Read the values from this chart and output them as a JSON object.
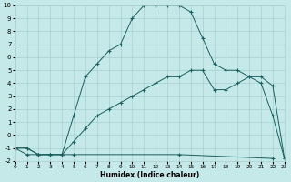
{
  "background_color": "#c5e8e8",
  "grid_color": "#a8d0d0",
  "line_color": "#1a6060",
  "curve1_x": [
    0,
    1,
    2,
    3,
    4,
    5,
    6,
    7,
    8,
    9,
    10,
    11,
    12,
    13,
    14,
    15,
    16,
    17,
    18,
    19,
    20,
    21,
    22,
    23
  ],
  "curve1_y": [
    -1,
    -1,
    -1.5,
    -1.5,
    -1.5,
    1.5,
    4.5,
    5.5,
    6.5,
    7.0,
    9.0,
    10.0,
    10.0,
    10.0,
    10.0,
    9.5,
    7.5,
    5.5,
    5.0,
    5.0,
    4.5,
    4.0,
    1.5,
    -1.8
  ],
  "curve2_x": [
    0,
    1,
    2,
    3,
    4,
    5,
    6,
    7,
    8,
    9,
    10,
    11,
    12,
    13,
    14,
    15,
    16,
    17,
    18,
    19,
    20,
    21,
    22,
    23
  ],
  "curve2_y": [
    -1,
    -1,
    -1.5,
    -1.5,
    -1.5,
    -0.5,
    0.5,
    1.5,
    2.0,
    2.5,
    3.0,
    3.5,
    4.0,
    4.5,
    4.5,
    5.0,
    5.0,
    3.5,
    3.5,
    4.0,
    4.5,
    4.5,
    3.8,
    -1.8
  ],
  "curve3_x": [
    0,
    1,
    2,
    3,
    4,
    5,
    14,
    22
  ],
  "curve3_y": [
    -1,
    -1.5,
    -1.5,
    -1.5,
    -1.5,
    -1.5,
    -1.5,
    -1.8
  ],
  "xlabel": "Humidex (Indice chaleur)",
  "ylim": [
    -2,
    10
  ],
  "xlim": [
    0,
    23
  ],
  "yticks": [
    -2,
    -1,
    0,
    1,
    2,
    3,
    4,
    5,
    6,
    7,
    8,
    9,
    10
  ],
  "xticks": [
    0,
    1,
    2,
    3,
    4,
    5,
    6,
    7,
    8,
    9,
    10,
    11,
    12,
    13,
    14,
    15,
    16,
    17,
    18,
    19,
    20,
    21,
    22,
    23
  ]
}
